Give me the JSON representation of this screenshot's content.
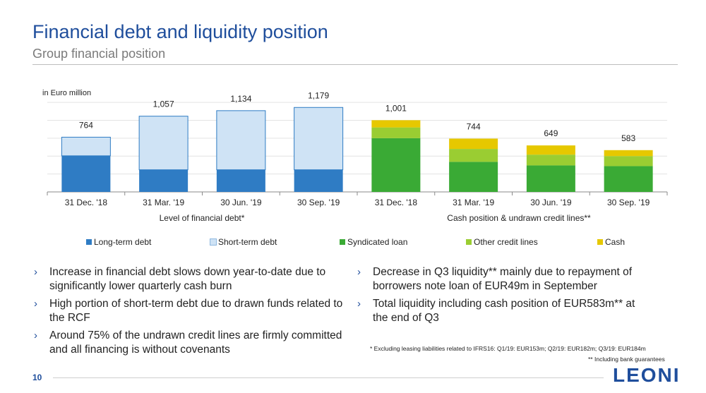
{
  "header": {
    "title": "Financial debt and liquidity position",
    "subtitle": "Group financial position"
  },
  "chart_data": {
    "type": "bar",
    "stacked": true,
    "unit_label": "in Euro million",
    "categories": [
      "31 Dec. '18",
      "31 Mar. '19",
      "30 Jun. '19",
      "30 Sep. '19",
      "31 Dec. '18",
      "31 Mar. '19",
      "30 Jun. '19",
      "30 Sep. '19"
    ],
    "group_labels": [
      "Level of financial debt*",
      "Cash position & undrawn credit lines**"
    ],
    "totals": [
      "764",
      "1,057",
      "1,134",
      "1,179",
      "1,001",
      "744",
      "649",
      "583"
    ],
    "ylim": [
      0,
      1300
    ],
    "grid": true,
    "series": [
      {
        "name": "Long-term debt",
        "color": "#2f7cc4",
        "values": [
          504,
          309,
          309,
          309,
          0,
          0,
          0,
          0
        ]
      },
      {
        "name": "Short-term debt",
        "color": "#cfe3f5",
        "values": [
          260,
          748,
          825,
          870,
          0,
          0,
          0,
          0
        ]
      },
      {
        "name": "Syndicated loan",
        "color": "#3aaa35",
        "values": [
          0,
          0,
          0,
          0,
          750,
          420,
          370,
          360
        ]
      },
      {
        "name": "Other credit lines",
        "color": "#9acd32",
        "values": [
          0,
          0,
          0,
          0,
          150,
          180,
          150,
          140
        ]
      },
      {
        "name": "Cash",
        "color": "#e6c800",
        "values": [
          0,
          0,
          0,
          0,
          101,
          144,
          129,
          83
        ]
      }
    ]
  },
  "legend": {
    "items": [
      "Long-term debt",
      "Short-term debt",
      "Syndicated loan",
      "Other credit lines",
      "Cash"
    ]
  },
  "bullets_left": [
    "Increase in financial debt slows down year-to-date due to significantly lower quarterly cash burn",
    "High portion of short-term debt due to drawn funds related to the RCF",
    "Around 75% of the undrawn credit lines are firmly committed and all financing is without covenants"
  ],
  "bullets_right": [
    "Decrease in Q3 liquidity** mainly due to repayment of borrowers note loan of EUR49m in September",
    "Total liquidity including cash position of EUR583m** at the end of Q3"
  ],
  "footnotes": {
    "note1": "* Excluding leasing liabilities related to IFRS16: Q1/19: EUR153m; Q2/19: EUR182m; Q3/19: EUR184m",
    "note2": "** Including bank guarantees"
  },
  "footer": {
    "page_number": "10",
    "logo": "LEONI"
  },
  "icons": {
    "bullet": "chevron-right-icon"
  }
}
